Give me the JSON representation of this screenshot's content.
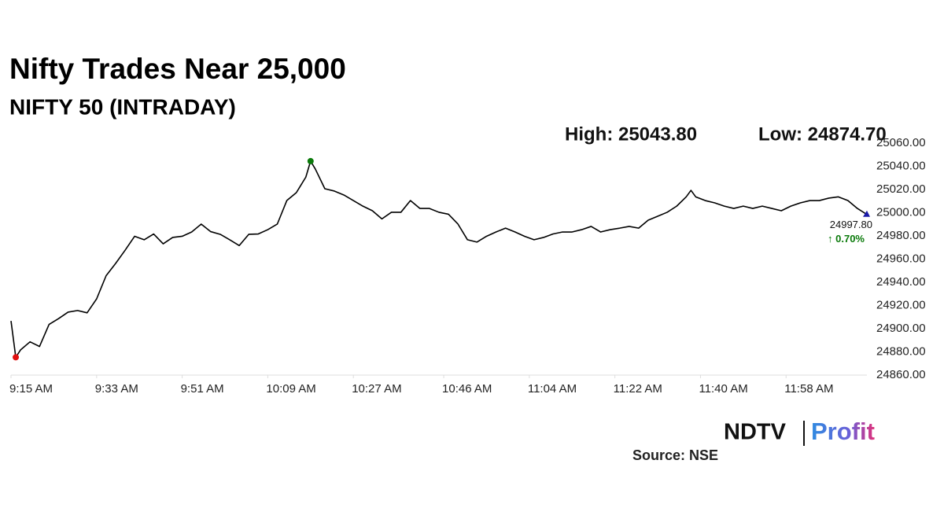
{
  "chart_data": {
    "type": "line",
    "title": "Nifty Trades Near 25,000",
    "subtitle": "NIFTY 50 (INTRADAY)",
    "high_text": "High: 25043.80",
    "low_text": "Low: 24874.70",
    "last_label": "24997.80",
    "change_label": "↑ 0.70%",
    "source": "Source: NSE",
    "logo": {
      "brand": "NDTV",
      "product": "Profit"
    },
    "x": [
      "09:15",
      "09:16",
      "09:17",
      "09:19",
      "09:21",
      "09:23",
      "09:25",
      "09:27",
      "09:29",
      "09:31",
      "09:33",
      "09:35",
      "09:37",
      "09:39",
      "09:41",
      "09:43",
      "09:45",
      "09:47",
      "09:49",
      "09:51",
      "09:53",
      "09:55",
      "09:57",
      "09:59",
      "10:01",
      "10:03",
      "10:05",
      "10:07",
      "10:09",
      "10:11",
      "10:13",
      "10:15",
      "10:17",
      "10:18",
      "10:19",
      "10:21",
      "10:23",
      "10:25",
      "10:27",
      "10:29",
      "10:31",
      "10:33",
      "10:35",
      "10:37",
      "10:39",
      "10:41",
      "10:43",
      "10:45",
      "10:47",
      "10:49",
      "10:51",
      "10:53",
      "10:55",
      "10:57",
      "10:59",
      "11:01",
      "11:03",
      "11:05",
      "11:07",
      "11:09",
      "11:11",
      "11:13",
      "11:15",
      "11:17",
      "11:19",
      "11:21",
      "11:23",
      "11:25",
      "11:27",
      "11:29",
      "11:31",
      "11:33",
      "11:35",
      "11:37",
      "11:38",
      "11:39",
      "11:41",
      "11:43",
      "11:45",
      "11:47",
      "11:49",
      "11:51",
      "11:53",
      "11:55",
      "11:57",
      "11:59",
      "12:01",
      "12:03",
      "12:05",
      "12:07",
      "12:09",
      "12:11",
      "12:13",
      "12:15"
    ],
    "series": [
      {
        "color": "#000000",
        "values": [
          24906,
          24874.7,
          24881,
          24888,
          24884,
          24903,
          24908,
          24913.6,
          24915,
          24913,
          24925,
          24945,
          24955.6,
          24967,
          24979,
          24976,
          24981,
          24972.5,
          24978,
          24979,
          24982.7,
          24989.5,
          24983,
          24980.7,
          24976,
          24971,
          24980.7,
          24981,
          24984.7,
          24989.5,
          25009.8,
          25016.6,
          25030,
          25043.8,
          25037,
          25020,
          25018,
          25014.6,
          25009.8,
          25005,
          25001,
          24994,
          24999.7,
          24999.7,
          25009.8,
          25003,
          25003,
          24999.7,
          24998,
          24989.5,
          24976,
          24974,
          24979,
          24982.7,
          24986,
          24982.7,
          24979,
          24976,
          24978,
          24981,
          24982.7,
          24982.7,
          24984.7,
          24987.5,
          24982.7,
          24984.7,
          24986,
          24987.5,
          24986,
          24992.9,
          24996.3,
          24999.7,
          25005,
          25013,
          25018.6,
          25013,
          25009.8,
          25007.8,
          25005,
          25003,
          25005,
          25003,
          25005,
          25003,
          25001,
          25005,
          25007.8,
          25009.8,
          25009.8,
          25011.9,
          25013,
          25009.8,
          25003,
          24997.8
        ]
      }
    ],
    "xlim": [
      "09:15",
      "12:15"
    ],
    "xticks": [
      {
        "value": "09:15",
        "label": "9:15 AM"
      },
      {
        "value": "09:33",
        "label": "9:33 AM"
      },
      {
        "value": "09:51",
        "label": "9:51 AM"
      },
      {
        "value": "10:09",
        "label": "10:09 AM"
      },
      {
        "value": "10:27",
        "label": "10:27 AM"
      },
      {
        "value": "10:46",
        "label": "10:46 AM"
      },
      {
        "value": "11:04",
        "label": "11:04 AM"
      },
      {
        "value": "11:22",
        "label": "11:22 AM"
      },
      {
        "value": "11:40",
        "label": "11:40 AM"
      },
      {
        "value": "11:58",
        "label": "11:58 AM"
      }
    ],
    "ylim": [
      24860,
      25060
    ],
    "yticks": [
      {
        "value": 24860,
        "label": "24860.00"
      },
      {
        "value": 24880,
        "label": "24880.00"
      },
      {
        "value": 24900,
        "label": "24900.00"
      },
      {
        "value": 24920,
        "label": "24920.00"
      },
      {
        "value": 24940,
        "label": "24940.00"
      },
      {
        "value": 24960,
        "label": "24960.00"
      },
      {
        "value": 24980,
        "label": "24980.00"
      },
      {
        "value": 25000,
        "label": "25000.00"
      },
      {
        "value": 25020,
        "label": "25020.00"
      },
      {
        "value": 25040,
        "label": "25040.00"
      },
      {
        "value": 25060,
        "label": "25060.00"
      }
    ],
    "high_color": "#0a7a0a",
    "low_color": "#e01010",
    "last_color": "#1a1aa8",
    "change_color": "#0a7a0a"
  }
}
